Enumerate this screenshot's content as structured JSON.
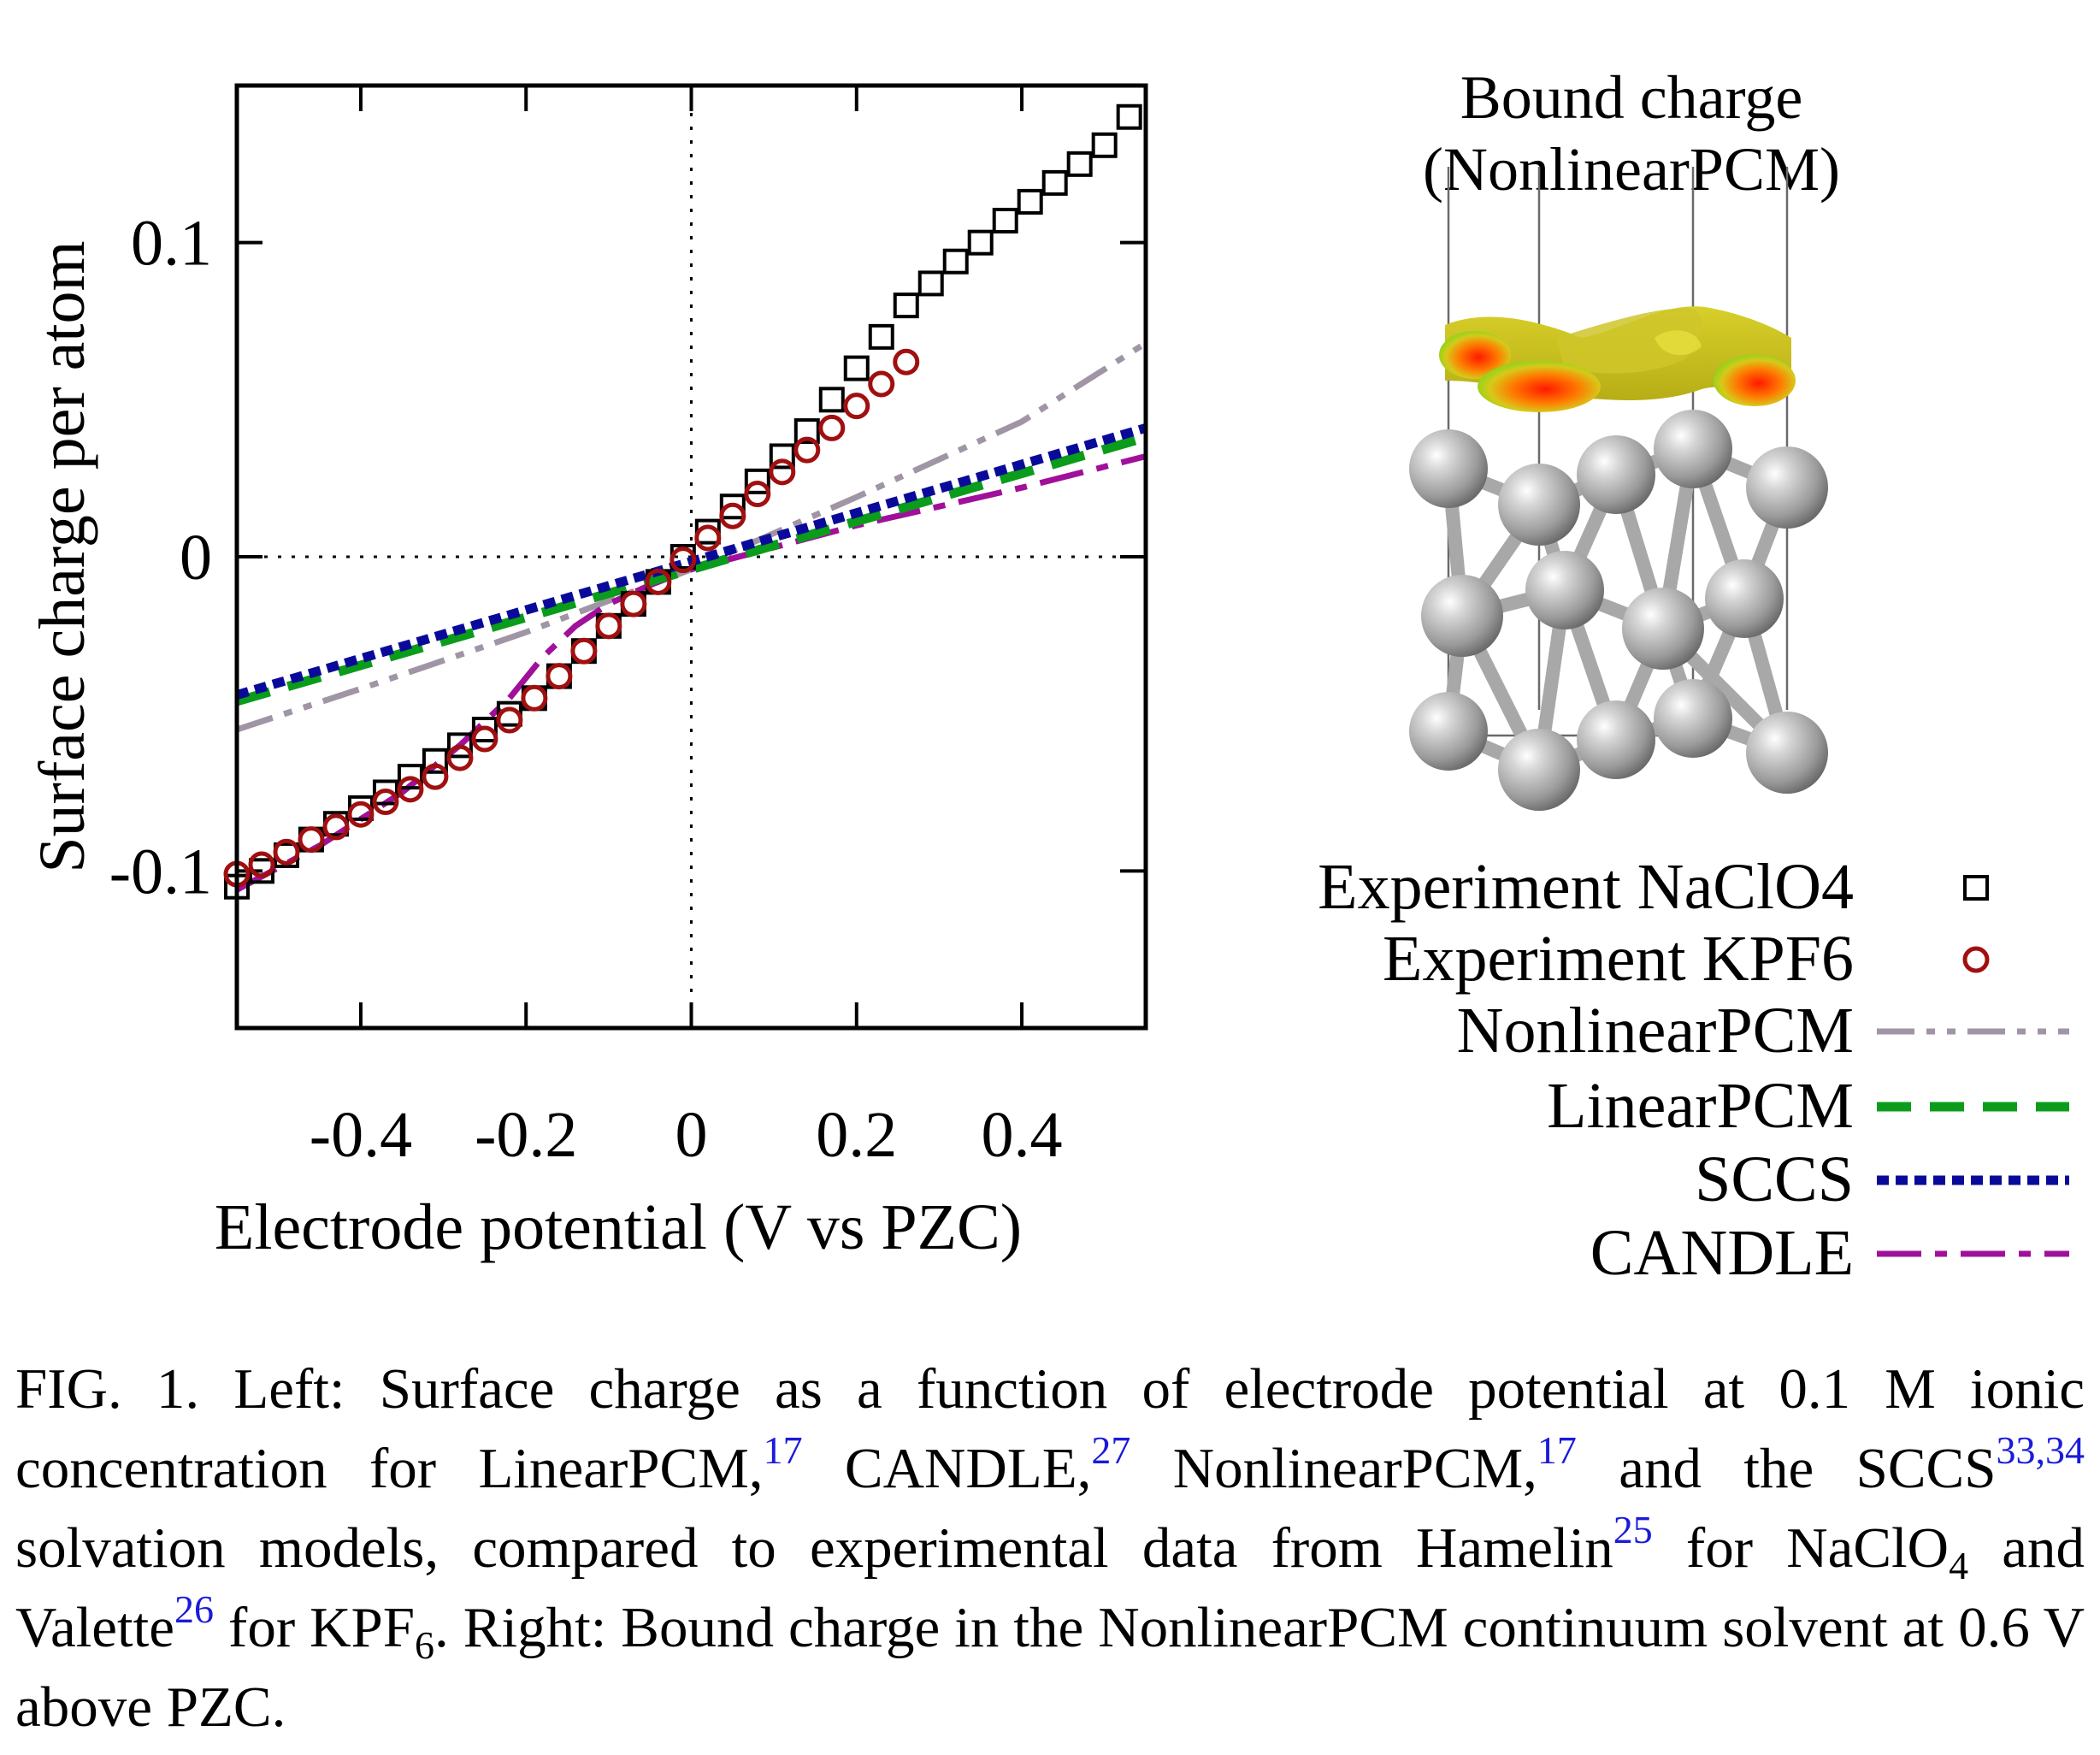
{
  "colors": {
    "nonlinearpcm": "#a095a5",
    "linearpcm": "#0a9c1a",
    "sccs": "#0a0a9a",
    "candle": "#a0109a",
    "nacl04_marker": "#000000",
    "kpf6_marker": "#a01010",
    "citation": "#1a1adb"
  },
  "chart_data": {
    "type": "line",
    "xlabel": "Electrode potential (V vs PZC)",
    "ylabel": "Surface charge per atom",
    "xlim": [
      -0.55,
      0.55
    ],
    "ylim": [
      -0.15,
      0.15
    ],
    "xticks": [
      -0.4,
      -0.2,
      0,
      0.2,
      0.4
    ],
    "xtick_labels": [
      "-0.4",
      "-0.2",
      "0",
      "0.2",
      "0.4"
    ],
    "yticks": [
      -0.1,
      0,
      0.1
    ],
    "ytick_labels": [
      "-0.1",
      "0",
      "0.1"
    ],
    "zero_lines": "dotted",
    "series": [
      {
        "name": "Experiment NaClO4",
        "style": "square-markers",
        "x": [
          -0.55,
          -0.52,
          -0.49,
          -0.46,
          -0.43,
          -0.4,
          -0.37,
          -0.34,
          -0.31,
          -0.28,
          -0.25,
          -0.22,
          -0.19,
          -0.16,
          -0.13,
          -0.1,
          -0.07,
          -0.04,
          -0.01,
          0.02,
          0.05,
          0.08,
          0.11,
          0.14,
          0.17,
          0.2,
          0.23,
          0.26,
          0.29,
          0.32,
          0.35,
          0.38,
          0.41,
          0.44,
          0.47,
          0.5,
          0.53
        ],
        "y": [
          -0.105,
          -0.1,
          -0.095,
          -0.09,
          -0.085,
          -0.08,
          -0.075,
          -0.07,
          -0.065,
          -0.06,
          -0.055,
          -0.05,
          -0.045,
          -0.038,
          -0.03,
          -0.022,
          -0.015,
          -0.008,
          0.0,
          0.008,
          0.016,
          0.024,
          0.032,
          0.04,
          0.05,
          0.06,
          0.07,
          0.08,
          0.087,
          0.094,
          0.1,
          0.107,
          0.113,
          0.119,
          0.125,
          0.131,
          0.14
        ]
      },
      {
        "name": "Experiment KPF6",
        "style": "circle-markers",
        "x": [
          -0.55,
          -0.52,
          -0.49,
          -0.46,
          -0.43,
          -0.4,
          -0.37,
          -0.34,
          -0.31,
          -0.28,
          -0.25,
          -0.22,
          -0.19,
          -0.16,
          -0.13,
          -0.1,
          -0.07,
          -0.04,
          -0.01,
          0.02,
          0.05,
          0.08,
          0.11,
          0.14,
          0.17,
          0.2,
          0.23,
          0.26
        ],
        "y": [
          -0.101,
          -0.098,
          -0.094,
          -0.09,
          -0.086,
          -0.082,
          -0.078,
          -0.074,
          -0.07,
          -0.064,
          -0.058,
          -0.052,
          -0.045,
          -0.038,
          -0.03,
          -0.022,
          -0.015,
          -0.008,
          -0.001,
          0.006,
          0.013,
          0.02,
          0.027,
          0.034,
          0.041,
          0.048,
          0.055,
          0.062
        ]
      },
      {
        "name": "NonlinearPCM",
        "style": "dash-dot-dot",
        "x": [
          -0.55,
          -0.4,
          -0.2,
          0,
          0.2,
          0.4,
          0.55
        ],
        "y": [
          -0.055,
          -0.042,
          -0.024,
          -0.004,
          0.019,
          0.043,
          0.068
        ]
      },
      {
        "name": "LinearPCM",
        "style": "dashed",
        "x": [
          -0.55,
          0.55
        ],
        "y": [
          -0.046,
          0.038
        ]
      },
      {
        "name": "SCCS",
        "style": "dotted",
        "x": [
          -0.55,
          0.55
        ],
        "y": [
          -0.044,
          0.041
        ]
      },
      {
        "name": "CANDLE",
        "style": "long-short-dash",
        "x": [
          -0.55,
          -0.45,
          -0.35,
          -0.28,
          -0.22,
          -0.18,
          -0.14,
          -0.1,
          -0.05,
          0,
          0.1,
          0.2,
          0.3,
          0.4,
          0.55
        ],
        "y": [
          -0.106,
          -0.092,
          -0.075,
          -0.06,
          -0.045,
          -0.032,
          -0.022,
          -0.015,
          -0.009,
          -0.004,
          0.003,
          0.01,
          0.016,
          0.022,
          0.032
        ]
      }
    ]
  },
  "render": {
    "title_line1": "Bound charge",
    "title_line2": "(NonlinearPCM)"
  },
  "legend": [
    {
      "label": "Experiment NaClO4",
      "key": "nacl04"
    },
    {
      "label": "Experiment KPF6",
      "key": "kpf6"
    },
    {
      "label": "NonlinearPCM",
      "key": "nonlinearpcm"
    },
    {
      "label": "LinearPCM",
      "key": "linearpcm"
    },
    {
      "label": "SCCS",
      "key": "sccs"
    },
    {
      "label": "CANDLE",
      "key": "candle"
    }
  ],
  "caption": {
    "lead": "FIG. 1.  Left: Surface charge as a function of electrode potential at 0.1 M ionic concentration for LinearPCM,",
    "ref1": "17",
    "t2": " CANDLE,",
    "ref2": "27",
    "t3": " NonlinearPCM,",
    "ref3": "17",
    "t4": " and the SCCS",
    "ref4": "33,34",
    "t5": " solvation models, compared to experimental data from Hamelin",
    "ref5": "25",
    "t6": " for NaClO",
    "sub1": "4",
    "t7": " and Valette",
    "ref6": "26",
    "t8": " for KPF",
    "sub2": "6",
    "t9": ". Right: Bound charge in the NonlinearPCM continuum solvent at 0.6 V above PZC."
  }
}
